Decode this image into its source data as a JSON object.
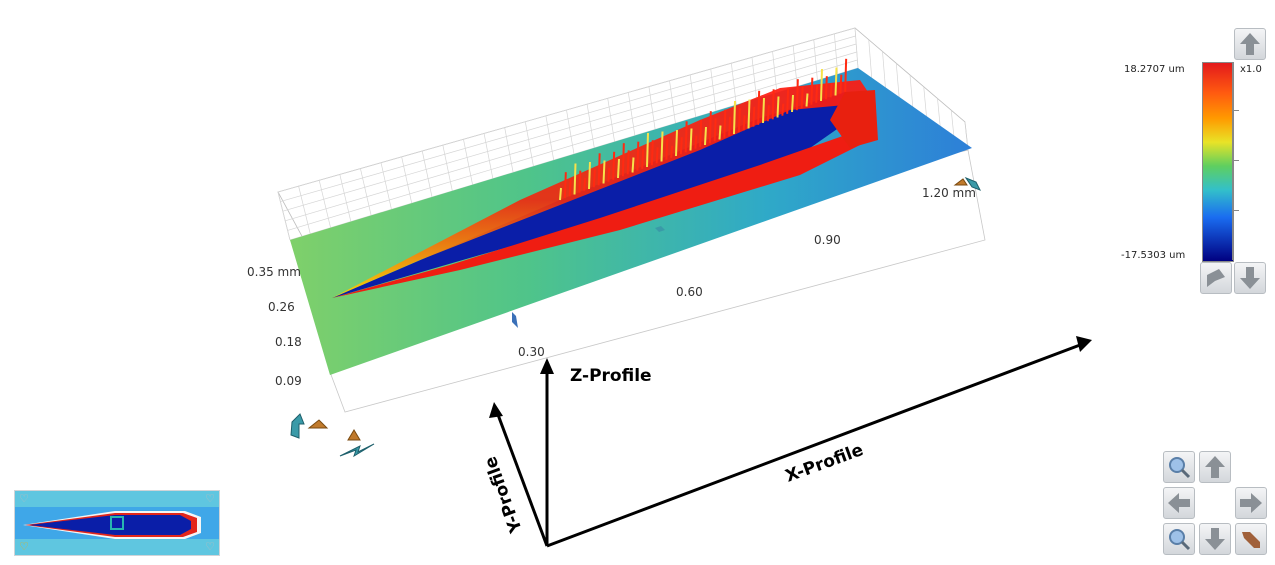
{
  "view3d": {
    "x_axis_ticks": [
      "0.30",
      "0.60",
      "0.90",
      "1.20 mm"
    ],
    "y_axis_ticks": [
      "0.35 mm",
      "0.26",
      "0.18",
      "0.09"
    ]
  },
  "annotations": {
    "z_profile": "Z-Profile",
    "y_profile": "Y-Profile",
    "x_profile": "X-Profile"
  },
  "color_scale": {
    "max_label": "18.2707 um",
    "min_label": "-17.5303 um",
    "zoom_label": "x1.0",
    "colors": [
      "#e31a1c",
      "#ff9a00",
      "#e9e327",
      "#5fcf5f",
      "#33c0c9",
      "#1a6cf0",
      "#000080"
    ]
  },
  "icons": {
    "scale_up": "arrow-up-icon",
    "scale_reset": "reset-icon",
    "scale_down": "arrow-down-icon",
    "zoom_in": "zoom-in-icon",
    "zoom_out": "zoom-out-icon",
    "pan": [
      "arrow-up-icon",
      "arrow-left-icon",
      "arrow-right-icon",
      "arrow-down-icon"
    ],
    "reset_view": "reset-view-icon",
    "light": "lightbulb-icon"
  }
}
